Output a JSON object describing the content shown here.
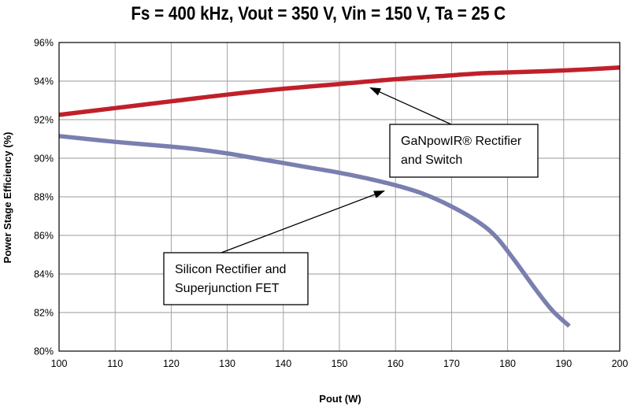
{
  "chart_data": {
    "type": "line",
    "title": "Fs = 400 kHz, Vout = 350 V, Vin = 150 V, Ta = 25 C",
    "xlabel": "Pout (W)",
    "ylabel": "Power Stage Efficiency (%)",
    "xlim": [
      100,
      200
    ],
    "ylim": [
      80,
      96
    ],
    "x_ticks": [
      100,
      110,
      120,
      130,
      140,
      150,
      160,
      170,
      180,
      190,
      200
    ],
    "y_ticks": [
      80,
      82,
      84,
      86,
      88,
      90,
      92,
      94,
      96
    ],
    "y_tick_labels": [
      "80%",
      "82%",
      "84%",
      "86%",
      "88%",
      "90%",
      "92%",
      "94%",
      "96%"
    ],
    "grid": true,
    "series": [
      {
        "color": "#c0202a",
        "x": [
          100,
          110,
          120,
          130,
          140,
          150,
          160,
          170,
          175,
          180,
          190,
          200
        ],
        "y": [
          92.25,
          92.6,
          92.95,
          93.3,
          93.6,
          93.85,
          94.1,
          94.3,
          94.4,
          94.45,
          94.55,
          94.7
        ]
      },
      {
        "color": "#7a7fb0",
        "x": [
          100,
          110,
          120,
          125,
          130,
          135,
          140,
          145,
          150,
          155,
          160,
          165,
          170,
          175,
          178,
          181,
          185,
          188,
          191
        ],
        "y": [
          91.15,
          90.85,
          90.6,
          90.45,
          90.25,
          90.0,
          89.75,
          89.5,
          89.25,
          88.95,
          88.6,
          88.15,
          87.5,
          86.65,
          85.9,
          84.8,
          83.2,
          82.1,
          81.3
        ]
      }
    ],
    "annotations": [
      {
        "text_lines": [
          "GaNpowIR® Rectifier",
          "and Switch"
        ],
        "points_to": [
          155.5,
          93.9
        ]
      },
      {
        "text_lines": [
          "Silicon Rectifier and",
          "Superjunction FET"
        ],
        "points_to": [
          158,
          88.55
        ]
      }
    ]
  }
}
